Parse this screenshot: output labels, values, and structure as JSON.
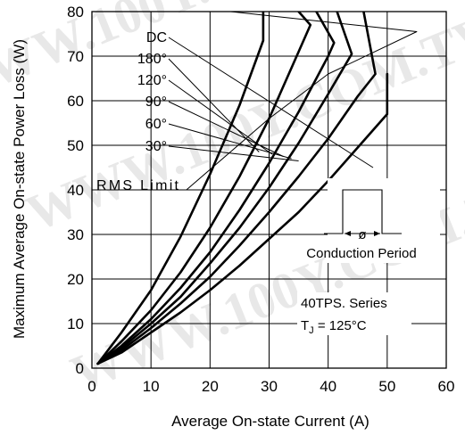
{
  "chart_data": {
    "type": "line",
    "xlabel": "Average On-state Current (A)",
    "ylabel": "Maximum Average On-state Power Loss (W)",
    "xlim": [
      0,
      60
    ],
    "ylim": [
      0,
      80
    ],
    "x_ticks": [
      "0",
      "10",
      "20",
      "30",
      "40",
      "50",
      "60"
    ],
    "y_ticks": [
      "0",
      "10",
      "20",
      "30",
      "40",
      "50",
      "60",
      "70",
      "80"
    ],
    "grid": true,
    "series": [
      {
        "name": "30°",
        "x": [
          1,
          5,
          10,
          15,
          20,
          25,
          30,
          35,
          40,
          45,
          50
        ],
        "y": [
          1,
          3.5,
          8,
          12.5,
          17.5,
          23,
          29,
          35,
          42,
          49.5,
          57
        ]
      },
      {
        "name": "60°",
        "x": [
          1,
          5,
          10,
          15,
          20,
          25,
          30,
          35,
          40,
          45,
          48
        ],
        "y": [
          1,
          4,
          9,
          14.5,
          20.5,
          27.5,
          35,
          43,
          51.5,
          61,
          66
        ]
      },
      {
        "name": "90°",
        "x": [
          1,
          5,
          10,
          15,
          20,
          25,
          30,
          35,
          40,
          44
        ],
        "y": [
          1,
          4.5,
          10,
          16,
          23.5,
          31.5,
          40.5,
          50.5,
          61.5,
          70.5
        ]
      },
      {
        "name": "120°",
        "x": [
          1,
          5,
          10,
          15,
          20,
          25,
          30,
          35,
          40,
          41
        ],
        "y": [
          1,
          5,
          11,
          18,
          26,
          35.5,
          46,
          57.5,
          70,
          73
        ]
      },
      {
        "name": "180°",
        "x": [
          1,
          5,
          10,
          15,
          20,
          25,
          30,
          35,
          37
        ],
        "y": [
          1,
          6,
          13,
          21.5,
          31.5,
          43,
          56,
          71,
          77
        ]
      },
      {
        "name": "DC",
        "x": [
          1,
          5,
          10,
          15,
          20,
          25,
          29
        ],
        "y": [
          1,
          8,
          17.5,
          29.5,
          43.5,
          59,
          73.5
        ]
      },
      {
        "name": "RMS Limit",
        "x": [
          16,
          30,
          40,
          55
        ],
        "y": [
          40,
          56,
          66,
          75.5
        ]
      }
    ],
    "series_end_points": [
      [
        50,
        66
      ],
      [
        46,
        80
      ],
      [
        41.5,
        80
      ],
      [
        38,
        80
      ],
      [
        35,
        80
      ],
      [
        29,
        80
      ],
      [
        23.5,
        80
      ]
    ],
    "annotations": {
      "labels": [
        "DC",
        "180°",
        "120°",
        "90°",
        "60°",
        "30°"
      ],
      "rms_label": "RMS Limit",
      "conduction_symbol": "ø",
      "conduction_text": "Conduction Period",
      "device_text": "40TPS. Series",
      "tj_prefix": "T",
      "tj_subscript": "J",
      "tj_suffix": " = 125°C"
    },
    "watermark": "WWW.100Y.COM.TW"
  }
}
